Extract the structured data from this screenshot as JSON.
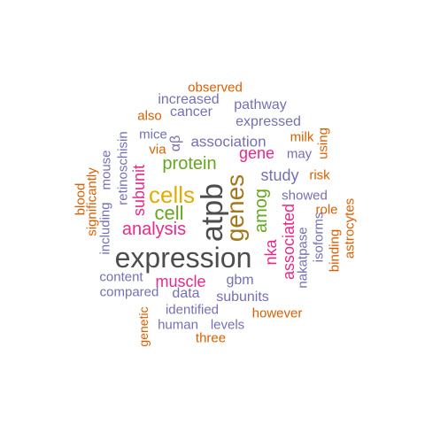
{
  "colors": {
    "gray": "#4d4d4d",
    "orange": "#d95f02",
    "purple": "#7570b3",
    "magenta": "#e7298a",
    "green": "#66a61e",
    "gold": "#e6ab02",
    "olive": "#a6761d"
  },
  "words": [
    {
      "text": "expression",
      "color": "gray"
    },
    {
      "text": "atpb",
      "color": "gray"
    },
    {
      "text": "genes",
      "color": "olive"
    },
    {
      "text": "cells",
      "color": "gold"
    },
    {
      "text": "amog",
      "color": "green"
    },
    {
      "text": "cell",
      "color": "green"
    },
    {
      "text": "protein",
      "color": "green"
    },
    {
      "text": "analysis",
      "color": "magenta"
    },
    {
      "text": "associated",
      "color": "magenta"
    },
    {
      "text": "nka",
      "color": "magenta"
    },
    {
      "text": "gene",
      "color": "magenta"
    },
    {
      "text": "muscle",
      "color": "magenta"
    },
    {
      "text": "subunit",
      "color": "magenta"
    },
    {
      "text": "study",
      "color": "purple"
    },
    {
      "text": "association",
      "color": "purple"
    },
    {
      "text": "αβ",
      "color": "purple"
    },
    {
      "text": "data",
      "color": "purple"
    },
    {
      "text": "gbm",
      "color": "purple"
    },
    {
      "text": "subunits",
      "color": "purple"
    },
    {
      "text": "identified",
      "color": "purple"
    },
    {
      "text": "human",
      "color": "purple"
    },
    {
      "text": "levels",
      "color": "purple"
    },
    {
      "text": "compared",
      "color": "purple"
    },
    {
      "text": "content",
      "color": "purple"
    },
    {
      "text": "showed",
      "color": "purple"
    },
    {
      "text": "nakatpase",
      "color": "purple"
    },
    {
      "text": "isoforms",
      "color": "purple"
    },
    {
      "text": "expressed",
      "color": "purple"
    },
    {
      "text": "pathway",
      "color": "purple"
    },
    {
      "text": "increased",
      "color": "purple"
    },
    {
      "text": "cancer",
      "color": "purple"
    },
    {
      "text": "mice",
      "color": "purple"
    },
    {
      "text": "may",
      "color": "purple"
    },
    {
      "text": "retinoschisin",
      "color": "purple"
    },
    {
      "text": "mouse",
      "color": "purple"
    },
    {
      "text": "including",
      "color": "purple"
    },
    {
      "text": "observed",
      "color": "orange"
    },
    {
      "text": "also",
      "color": "orange"
    },
    {
      "text": "via",
      "color": "orange"
    },
    {
      "text": "milk",
      "color": "orange"
    },
    {
      "text": "using",
      "color": "orange"
    },
    {
      "text": "risk",
      "color": "orange"
    },
    {
      "text": "role",
      "color": "orange"
    },
    {
      "text": "binding",
      "color": "orange"
    },
    {
      "text": "astrocytes",
      "color": "orange"
    },
    {
      "text": "however",
      "color": "orange"
    },
    {
      "text": "three",
      "color": "orange"
    },
    {
      "text": "genetic",
      "color": "orange"
    },
    {
      "text": "blood",
      "color": "orange"
    },
    {
      "text": "significantly",
      "color": "orange"
    }
  ]
}
